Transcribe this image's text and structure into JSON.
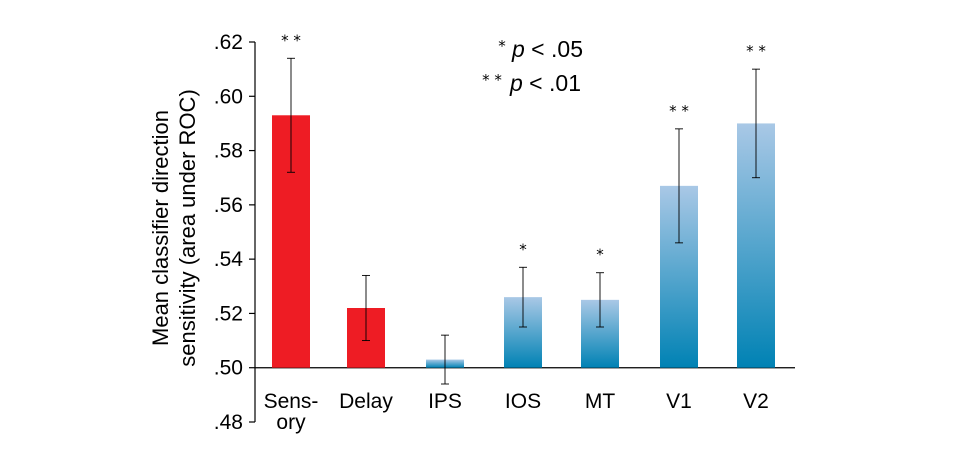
{
  "chart_data": {
    "type": "bar",
    "categories": [
      "Sensory",
      "Delay",
      "IPS",
      "IOS",
      "MT",
      "V1",
      "V2"
    ],
    "category_label_lines": [
      [
        "Sens-",
        "ory"
      ],
      [
        "Delay"
      ],
      [
        "IPS"
      ],
      [
        "IOS"
      ],
      [
        "MT"
      ],
      [
        "V1"
      ],
      [
        "V2"
      ]
    ],
    "values": [
      0.593,
      0.522,
      0.503,
      0.526,
      0.525,
      0.567,
      0.59
    ],
    "error": [
      0.021,
      0.012,
      0.009,
      0.011,
      0.01,
      0.021,
      0.02
    ],
    "significance": [
      "* *",
      "",
      "",
      "*",
      "*",
      "* *",
      "* *"
    ],
    "baseline": 0.5,
    "ylim": [
      0.48,
      0.62
    ],
    "yticks": [
      0.48,
      0.5,
      0.52,
      0.54,
      0.56,
      0.58,
      0.6,
      0.62
    ],
    "ytick_labels": [
      ".48",
      ".50",
      ".52",
      ".54",
      ".56",
      ".58",
      ".60",
      ".62"
    ],
    "ylabel_lines": [
      "Mean classifier direction",
      "sensitivity (area under ROC)"
    ],
    "legend": [
      {
        "stars": "*",
        "text": "p < .05"
      },
      {
        "stars": "* *",
        "text": "p < .01"
      }
    ],
    "colors": {
      "red": "#ee1c24",
      "blue_top": "#a9c8e6",
      "blue_bottom": "#0082b4"
    },
    "bar_styles": [
      "red",
      "red",
      "blue",
      "blue",
      "blue",
      "blue",
      "blue"
    ],
    "grid": false
  }
}
